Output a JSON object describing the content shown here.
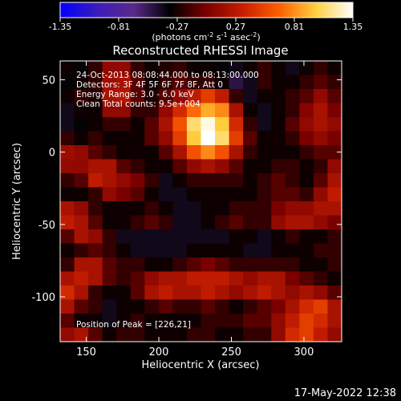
{
  "chart_data": {
    "type": "heatmap",
    "title": "Reconstructed RHESSI Image",
    "xlabel": "Heliocentric X (arcsec)",
    "ylabel": "Heliocentric Y (arcsec)",
    "xlim": [
      132,
      326
    ],
    "ylim": [
      -131,
      63
    ],
    "xticks": [
      150,
      200,
      250,
      300
    ],
    "yticks": [
      50,
      0,
      -50,
      -100
    ],
    "colorbar": {
      "label_main": "(photons cm",
      "exp1": "-2",
      "label_s": " s",
      "exp2": "-1",
      "label_asec": " asec",
      "exp3": "-2",
      "label_close": ")",
      "range": [
        -1.35,
        1.35
      ],
      "tick_labels": [
        "-1.35",
        "-0.81",
        "-0.27",
        "0.27",
        "0.81",
        "1.35"
      ],
      "tick_values": [
        -1.35,
        -0.81,
        -0.27,
        0.27,
        0.81,
        1.35
      ],
      "colors": [
        "#0000ff",
        "#3b1bbd",
        "#5a2a8c",
        "#000000",
        "#7a0000",
        "#c81e00",
        "#ff6000",
        "#ffd040",
        "#ffffff"
      ]
    },
    "annotations": [
      "24-Oct-2013 08:08:44.000 to 08:13:00.000",
      "Detectors: 3F 4F 5F 6F 7F 8F, Att 0",
      "Energy Range: 3.0 - 6.0 keV",
      "Clean     Total counts: 9.5e+004"
    ],
    "peak_label": "Position of Peak = [226,21]",
    "peak": {
      "x": 226,
      "y": 21,
      "value": 1.35
    },
    "image_grid": {
      "x_start": 132,
      "y_start": 63,
      "step": 9.7,
      "ncols": 20,
      "nrows": 20,
      "values": [
        [
          -0.3,
          -0.35,
          -0.2,
          0.1,
          0.1,
          -0.2,
          -0.3,
          -0.25,
          -0.2,
          -0.3,
          -0.3,
          -0.35,
          -0.4,
          -0.3,
          -0.2,
          -0.3,
          -0.4,
          -0.3,
          -0.2,
          -0.3
        ],
        [
          -0.35,
          -0.3,
          -0.2,
          0.15,
          0.2,
          -0.1,
          -0.3,
          -0.2,
          -0.1,
          -0.2,
          -0.2,
          -0.3,
          -0.5,
          -0.4,
          -0.2,
          -0.3,
          -0.3,
          -0.2,
          -0.1,
          -0.2
        ],
        [
          -0.3,
          -0.2,
          -0.25,
          0.2,
          0.25,
          -0.1,
          -0.25,
          -0.1,
          0.1,
          0.3,
          0.5,
          0.3,
          -0.2,
          -0.4,
          -0.3,
          -0.3,
          -0.2,
          -0.1,
          0.1,
          -0.1
        ],
        [
          -0.4,
          -0.3,
          -0.3,
          0.1,
          0.1,
          -0.2,
          -0.2,
          0.1,
          0.4,
          0.7,
          0.9,
          0.8,
          0.2,
          -0.3,
          -0.4,
          -0.3,
          -0.2,
          0.05,
          0.2,
          0.0
        ],
        [
          -0.4,
          -0.35,
          -0.3,
          -0.2,
          -0.2,
          -0.3,
          -0.1,
          0.2,
          0.6,
          1.1,
          1.3,
          1.0,
          0.4,
          -0.2,
          -0.4,
          -0.3,
          -0.1,
          0.1,
          0.2,
          0.1
        ],
        [
          -0.2,
          -0.3,
          -0.2,
          -0.3,
          -0.3,
          -0.3,
          -0.1,
          0.1,
          0.5,
          1.0,
          1.35,
          1.1,
          0.5,
          -0.1,
          -0.3,
          -0.3,
          -0.2,
          0.0,
          0.1,
          0.0
        ],
        [
          0.15,
          0.1,
          -0.1,
          -0.2,
          -0.3,
          -0.3,
          -0.3,
          -0.1,
          0.2,
          0.6,
          0.8,
          0.6,
          0.2,
          -0.2,
          -0.3,
          -0.3,
          -0.3,
          -0.2,
          -0.1,
          -0.1
        ],
        [
          0.1,
          0.1,
          0.2,
          0.2,
          -0.1,
          -0.2,
          -0.3,
          -0.3,
          -0.1,
          0.1,
          0.2,
          0.1,
          -0.1,
          -0.3,
          -0.3,
          -0.2,
          -0.2,
          -0.3,
          -0.2,
          0.1
        ],
        [
          -0.2,
          -0.1,
          0.3,
          0.2,
          0.1,
          0.0,
          -0.2,
          -0.4,
          -0.3,
          -0.2,
          -0.2,
          -0.2,
          -0.2,
          -0.3,
          -0.2,
          -0.1,
          -0.2,
          -0.3,
          -0.1,
          0.2
        ],
        [
          -0.3,
          -0.3,
          -0.2,
          0.1,
          0.0,
          -0.1,
          -0.3,
          -0.4,
          -0.4,
          -0.3,
          -0.3,
          -0.3,
          -0.3,
          -0.3,
          -0.2,
          -0.1,
          -0.1,
          -0.2,
          0.1,
          0.3
        ],
        [
          0.2,
          0.1,
          -0.2,
          -0.3,
          -0.3,
          -0.3,
          -0.2,
          -0.3,
          -0.4,
          -0.4,
          -0.3,
          -0.3,
          -0.2,
          -0.2,
          -0.2,
          0.0,
          0.1,
          0.1,
          0.2,
          0.2
        ],
        [
          0.3,
          0.2,
          -0.1,
          -0.3,
          -0.3,
          -0.2,
          -0.1,
          -0.2,
          -0.4,
          -0.4,
          -0.3,
          -0.2,
          -0.1,
          -0.2,
          -0.2,
          0.1,
          0.2,
          0.2,
          0.1,
          0.0
        ],
        [
          -0.1,
          0.2,
          0.1,
          -0.2,
          -0.4,
          -0.4,
          -0.4,
          -0.4,
          -0.4,
          -0.4,
          -0.4,
          -0.4,
          -0.3,
          -0.3,
          -0.4,
          -0.3,
          -0.2,
          -0.3,
          -0.3,
          -0.2
        ],
        [
          -0.3,
          -0.2,
          -0.1,
          -0.2,
          -0.3,
          -0.4,
          -0.4,
          -0.4,
          -0.4,
          -0.3,
          -0.3,
          -0.3,
          -0.3,
          -0.4,
          -0.4,
          -0.3,
          -0.3,
          -0.3,
          -0.2,
          -0.2
        ],
        [
          -0.2,
          0.2,
          0.2,
          -0.1,
          -0.2,
          -0.2,
          -0.3,
          -0.3,
          -0.2,
          -0.1,
          0.0,
          -0.1,
          -0.2,
          -0.2,
          -0.2,
          -0.2,
          -0.2,
          -0.3,
          -0.3,
          -0.2
        ],
        [
          0.2,
          0.3,
          0.2,
          -0.1,
          -0.2,
          -0.1,
          0.1,
          0.2,
          0.2,
          0.3,
          0.3,
          0.3,
          0.2,
          0.1,
          0.2,
          0.2,
          0.0,
          -0.1,
          -0.2,
          -0.3
        ],
        [
          0.4,
          0.2,
          -0.2,
          -0.3,
          -0.3,
          -0.1,
          0.2,
          0.3,
          0.2,
          0.2,
          0.3,
          0.2,
          0.1,
          0.2,
          0.3,
          0.2,
          0.1,
          0.2,
          0.1,
          -0.1
        ],
        [
          0.2,
          -0.1,
          -0.2,
          -0.4,
          -0.3,
          -0.3,
          -0.2,
          -0.1,
          -0.2,
          -0.2,
          -0.1,
          -0.2,
          -0.3,
          -0.2,
          -0.1,
          0.0,
          0.2,
          0.4,
          0.5,
          0.2
        ],
        [
          -0.1,
          -0.3,
          -0.3,
          -0.4,
          -0.3,
          -0.2,
          -0.3,
          -0.3,
          -0.3,
          -0.3,
          -0.2,
          -0.2,
          -0.2,
          -0.1,
          -0.1,
          0.1,
          0.3,
          0.5,
          0.4,
          0.2
        ],
        [
          0.1,
          0.2,
          -0.1,
          -0.3,
          -0.2,
          -0.2,
          -0.3,
          -0.3,
          -0.3,
          -0.2,
          -0.2,
          -0.3,
          -0.3,
          -0.2,
          -0.2,
          0.1,
          0.4,
          0.5,
          0.3,
          0.1
        ]
      ]
    }
  },
  "footer": {
    "timestamp": "17-May-2022 12:38"
  }
}
